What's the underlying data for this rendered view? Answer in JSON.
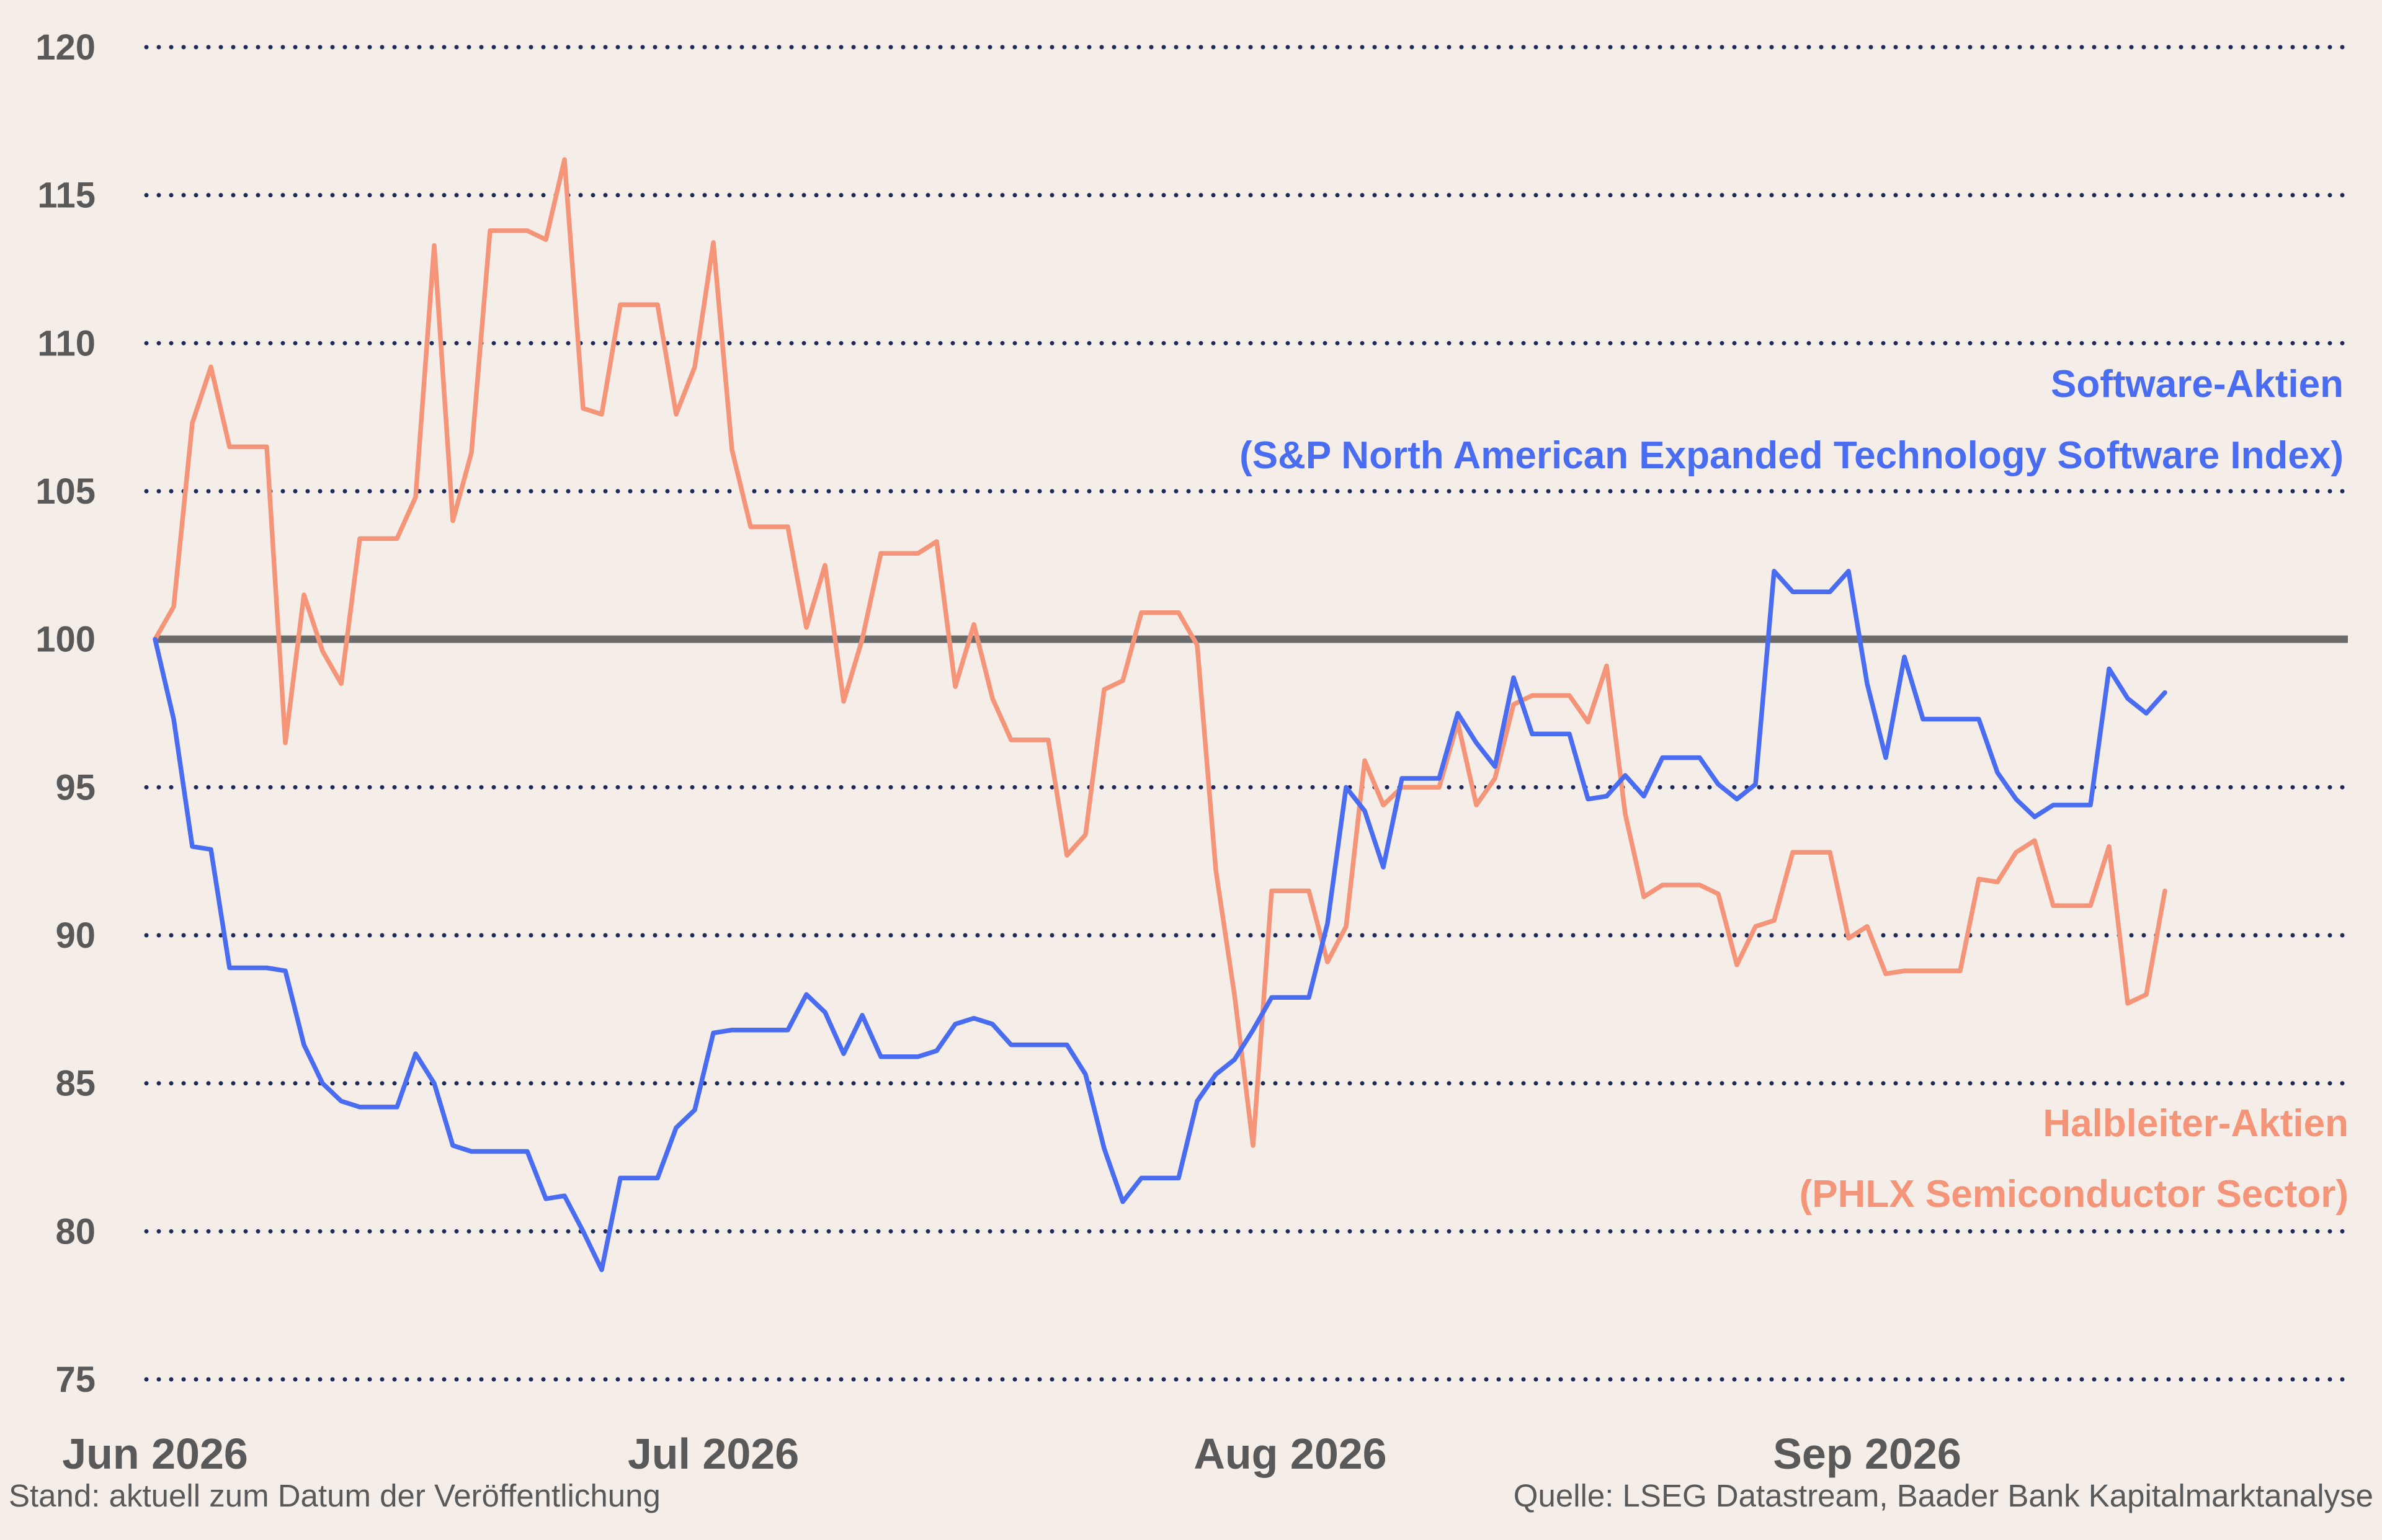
{
  "footer": {
    "left": "Stand: aktuell zum Datum der Veröffentlichung",
    "right": "Quelle: LSEG Datastream, Baader Bank Kapitalmarktanalyse"
  },
  "colors": {
    "software": "#4a6cf0",
    "semiconductor": "#f49478",
    "baseline": "#6b6b6b",
    "grid": "#1f2a5a"
  },
  "chart_data": {
    "type": "line",
    "x_unit": "trading days",
    "x_ticks": [
      {
        "label": "Jun 2026",
        "x": 0
      },
      {
        "label": "Jul 2026",
        "x": 30
      },
      {
        "label": "Aug 2026",
        "x": 61
      },
      {
        "label": "Sep 2026",
        "x": 92
      }
    ],
    "xlim": [
      0,
      113
    ],
    "ylim": [
      75,
      120
    ],
    "yticks": [
      75,
      80,
      85,
      90,
      95,
      100,
      105,
      110,
      115,
      120
    ],
    "grid": true,
    "reference_line": 100,
    "series": [
      {
        "name": "Software-Aktien (S&P North American Expanded Technology Software Index)",
        "label_line1": "Software-Aktien",
        "label_line2": "(S&P North American Expanded Technology Software Index)",
        "color": "#4a6cf0",
        "values": [
          100,
          97.3,
          93,
          92.9,
          88.9,
          88.9,
          88.9,
          88.8,
          86.3,
          85,
          84.4,
          84.2,
          84.2,
          84.2,
          86,
          85,
          82.9,
          82.7,
          82.7,
          82.7,
          82.7,
          81.1,
          81.2,
          80,
          78.7,
          81.8,
          81.8,
          81.8,
          83.5,
          84.1,
          86.7,
          86.8,
          86.8,
          86.8,
          86.8,
          88,
          87.4,
          86,
          87.3,
          85.9,
          85.9,
          85.9,
          86.1,
          87,
          87.2,
          87,
          86.3,
          86.3,
          86.3,
          86.3,
          85.3,
          82.8,
          81,
          81.8,
          81.8,
          81.8,
          84.4,
          85.3,
          85.8,
          86.8,
          87.9,
          87.9,
          87.9,
          90.4,
          95,
          94.2,
          92.3,
          95.3,
          95.3,
          95.3,
          97.5,
          96.5,
          95.7,
          98.7,
          96.8,
          96.8,
          96.8,
          94.6,
          94.7,
          95.4,
          94.7,
          96,
          96,
          96,
          95.1,
          94.6,
          95.1,
          102.3,
          101.6,
          101.6,
          101.6,
          102.3,
          98.5,
          96,
          99.4,
          97.3,
          97.3,
          97.3,
          97.3,
          95.5,
          94.6,
          94,
          94.4,
          94.4,
          94.4,
          99,
          98,
          97.5,
          98.2
        ]
      },
      {
        "name": "Halbleiter-Aktien (PHLX Semiconductor Sector)",
        "label_line1": "Halbleiter-Aktien",
        "label_line2": "(PHLX Semiconductor Sector)",
        "color": "#f49478",
        "values": [
          100,
          101.1,
          107.3,
          109.2,
          106.5,
          106.5,
          106.5,
          96.5,
          101.5,
          99.6,
          98.5,
          103.4,
          103.4,
          103.4,
          104.8,
          113.3,
          104,
          106.3,
          113.8,
          113.8,
          113.8,
          113.5,
          116.2,
          107.8,
          107.6,
          111.3,
          111.3,
          111.3,
          107.6,
          109.2,
          113.4,
          106.4,
          103.8,
          103.8,
          103.8,
          100.4,
          102.5,
          97.9,
          100,
          102.9,
          102.9,
          102.9,
          103.3,
          98.4,
          100.5,
          98,
          96.6,
          96.6,
          96.6,
          92.7,
          93.4,
          98.3,
          98.6,
          100.9,
          100.9,
          100.9,
          99.8,
          92.2,
          88,
          82.9,
          91.5,
          91.5,
          91.5,
          89.1,
          90.3,
          95.9,
          94.4,
          95,
          95,
          95,
          97.2,
          94.4,
          95.3,
          97.8,
          98.1,
          98.1,
          98.1,
          97.2,
          99.1,
          94.1,
          91.3,
          91.7,
          91.7,
          91.7,
          91.4,
          89,
          90.3,
          90.5,
          92.8,
          92.8,
          92.8,
          89.9,
          90.3,
          88.7,
          88.8,
          88.8,
          88.8,
          88.8,
          91.9,
          91.8,
          92.8,
          93.2,
          91,
          91,
          91,
          93,
          87.7,
          88,
          91.5
        ]
      }
    ]
  }
}
